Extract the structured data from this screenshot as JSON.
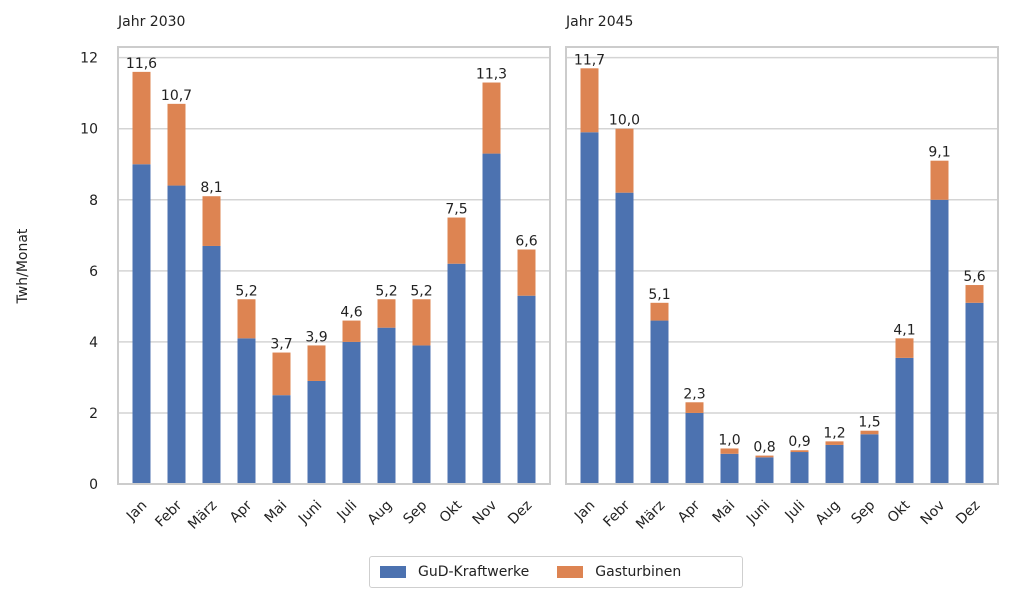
{
  "chart_data": [
    {
      "type": "bar",
      "stacked": true,
      "title": "Jahr 2030",
      "ylabel": "Twh/Monat",
      "ylim": [
        0,
        12.3
      ],
      "yticks": [
        0,
        2,
        4,
        6,
        8,
        10,
        12
      ],
      "grid": true,
      "categories": [
        "Jan",
        "Febr",
        "März",
        "Apr",
        "Mai",
        "Juni",
        "Juli",
        "Aug",
        "Sep",
        "Okt",
        "Nov",
        "Dez"
      ],
      "series": [
        {
          "name": "GuD-Kraftwerke",
          "color": "#4c72b0",
          "values": [
            9.0,
            8.4,
            6.7,
            4.1,
            2.5,
            2.9,
            4.0,
            4.4,
            3.9,
            6.2,
            9.3,
            5.3
          ]
        },
        {
          "name": "Gasturbinen",
          "color": "#dd8452",
          "values": [
            2.6,
            2.3,
            1.4,
            1.1,
            1.2,
            1.0,
            0.6,
            0.8,
            1.3,
            1.3,
            2.0,
            1.3
          ]
        }
      ],
      "totals_labels": [
        "11,6",
        "10,7",
        "8,1",
        "5,2",
        "3,7",
        "3,9",
        "4,6",
        "5,2",
        "5,2",
        "7,5",
        "11,3",
        "6,6"
      ]
    },
    {
      "type": "bar",
      "stacked": true,
      "title": "Jahr 2045",
      "ylim": [
        0,
        12.3
      ],
      "grid": true,
      "categories": [
        "Jan",
        "Febr",
        "März",
        "Apr",
        "Mai",
        "Juni",
        "Juli",
        "Aug",
        "Sep",
        "Okt",
        "Nov",
        "Dez"
      ],
      "series": [
        {
          "name": "GuD-Kraftwerke",
          "color": "#4c72b0",
          "values": [
            9.9,
            8.2,
            4.6,
            2.0,
            0.85,
            0.75,
            0.9,
            1.1,
            1.4,
            3.55,
            8.0,
            5.1
          ]
        },
        {
          "name": "Gasturbinen",
          "color": "#dd8452",
          "values": [
            1.8,
            1.8,
            0.5,
            0.3,
            0.15,
            0.05,
            0.05,
            0.1,
            0.1,
            0.55,
            1.1,
            0.5
          ]
        }
      ],
      "totals_labels": [
        "11,7",
        "10,0",
        "5,1",
        "2,3",
        "1,0",
        "0,8",
        "0,9",
        "1,2",
        "1,5",
        "4,1",
        "9,1",
        "5,6"
      ]
    }
  ],
  "legend": {
    "position": "bottom-center",
    "items": [
      {
        "label": "GuD-Kraftwerke",
        "color": "#4c72b0"
      },
      {
        "label": "Gasturbinen",
        "color": "#dd8452"
      }
    ]
  }
}
